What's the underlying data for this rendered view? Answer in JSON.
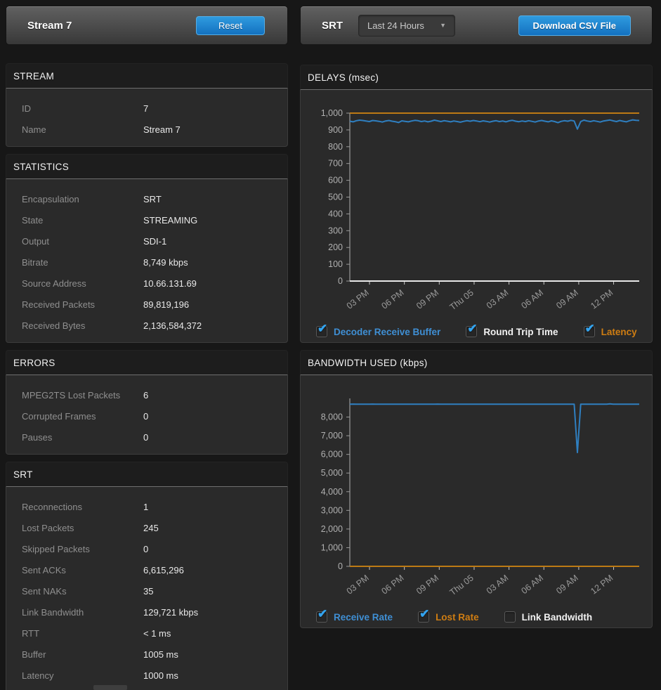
{
  "left": {
    "header": {
      "title": "Stream 7",
      "reset_label": "Reset"
    },
    "sections": [
      {
        "title": "STREAM",
        "rows": [
          [
            "ID",
            "7"
          ],
          [
            "Name",
            "Stream 7"
          ]
        ]
      },
      {
        "title": "STATISTICS",
        "rows": [
          [
            "Encapsulation",
            "SRT"
          ],
          [
            "State",
            "STREAMING"
          ],
          [
            "Output",
            "SDI-1"
          ],
          [
            "Bitrate",
            "8,749 kbps"
          ],
          [
            "Source Address",
            "10.66.131.69"
          ],
          [
            "Received Packets",
            "89,819,196"
          ],
          [
            "Received Bytes",
            "2,136,584,372"
          ]
        ]
      },
      {
        "title": "ERRORS",
        "rows": [
          [
            "MPEG2TS Lost Packets",
            "6"
          ],
          [
            "Corrupted Frames",
            "0"
          ],
          [
            "Pauses",
            "0"
          ]
        ]
      },
      {
        "title": "SRT",
        "rows": [
          [
            "Reconnections",
            "1"
          ],
          [
            "Lost Packets",
            "245"
          ],
          [
            "Skipped Packets",
            "0"
          ],
          [
            "Sent ACKs",
            "6,615,296"
          ],
          [
            "Sent NAKs",
            "35"
          ],
          [
            "Link Bandwidth",
            "129,721 kbps"
          ],
          [
            "RTT",
            "< 1 ms"
          ],
          [
            "Buffer",
            "1005 ms"
          ],
          [
            "Latency",
            "1000 ms"
          ]
        ]
      }
    ]
  },
  "right": {
    "header": {
      "title": "SRT",
      "range_selected": "Last 24 Hours",
      "download_label": "Download CSV File"
    }
  },
  "colors": {
    "accent_blue": "#1f7fd0",
    "series_blue": "#2f7fc0",
    "series_orange": "#bd7a14",
    "legend_blue": "#3f8fd4",
    "legend_orange": "#cf7d12",
    "check_blue": "#33a3ee"
  },
  "chart_data": [
    {
      "type": "line",
      "title": "DELAYS (msec)",
      "x_ticks": [
        "03 PM",
        "06 PM",
        "09 PM",
        "Thu 05",
        "03 AM",
        "06 AM",
        "09 AM",
        "12 PM"
      ],
      "ylim": [
        0,
        1000
      ],
      "y_tick_step": 100,
      "y_tick_max": 1000,
      "grid": false,
      "legend_position": "bottom",
      "series": [
        {
          "name": "Decoder Receive Buffer",
          "color": "#2f7fc0",
          "label_color": "#3f8fd4",
          "checked": true,
          "values": [
            952,
            948,
            955,
            958,
            956,
            953,
            950,
            956,
            954,
            951,
            947,
            953,
            956,
            952,
            949,
            944,
            954,
            951,
            948,
            953,
            957,
            955,
            950,
            953,
            948,
            952,
            958,
            954,
            950,
            955,
            952,
            948,
            953,
            950,
            946,
            951,
            955,
            952,
            956,
            953,
            949,
            954,
            951,
            947,
            952,
            955,
            950,
            953,
            948,
            954,
            957,
            952,
            949,
            953,
            950,
            955,
            951,
            947,
            953,
            956,
            952,
            948,
            954,
            950,
            943,
            951,
            955,
            952,
            957,
            953,
            905,
            950,
            958,
            953,
            950,
            955,
            951,
            947,
            953,
            956,
            959,
            954,
            950,
            956,
            952,
            948,
            955,
            960,
            957,
            956
          ]
        },
        {
          "name": "Round Trip Time",
          "color": "#e8e8e8",
          "label_color": "#f2f2f2",
          "checked": true,
          "values": [
            0,
            0
          ]
        },
        {
          "name": "Latency",
          "color": "#bd7a14",
          "label_color": "#cf7d12",
          "checked": true,
          "values": [
            1000,
            1000
          ]
        }
      ]
    },
    {
      "type": "line",
      "title": "BANDWIDTH USED (kbps)",
      "x_ticks": [
        "03 PM",
        "06 PM",
        "09 PM",
        "Thu 05",
        "03 AM",
        "06 AM",
        "09 AM",
        "12 PM"
      ],
      "ylim": [
        0,
        9000
      ],
      "y_tick_step": 1000,
      "y_tick_max": 8000,
      "grid": false,
      "legend_position": "bottom",
      "series": [
        {
          "name": "Receive Rate",
          "color": "#2f7fc0",
          "label_color": "#3f8fd4",
          "checked": true,
          "values": [
            8690,
            8695,
            8690,
            8688,
            8692,
            8690,
            8690,
            8694,
            8690,
            8687,
            8690,
            8692,
            8690,
            8690,
            8688,
            8690,
            8693,
            8690,
            8690,
            8691,
            8690,
            8689,
            8690,
            8692,
            8690,
            8690,
            8690,
            8694,
            8690,
            8688,
            8690,
            8690,
            8692,
            8690,
            8690,
            8689,
            8690,
            8693,
            8690,
            8690,
            8690,
            8691,
            8690,
            8688,
            8690,
            8690,
            8692,
            8690,
            8690,
            8690,
            8689,
            8690,
            8690,
            8693,
            8690,
            8690,
            8691,
            8690,
            8688,
            8690,
            8690,
            8692,
            8690,
            8690,
            8690,
            8690,
            8689,
            8690,
            8692,
            8690,
            6100,
            8690,
            8691,
            8690,
            8690,
            8688,
            8690,
            8692,
            8690,
            8690,
            8705,
            8690,
            8690,
            8691,
            8690,
            8690,
            8689,
            8690,
            8692,
            8690
          ]
        },
        {
          "name": "Lost Rate",
          "color": "#bd7a14",
          "label_color": "#cf7d12",
          "checked": true,
          "values": [
            0,
            0
          ]
        },
        {
          "name": "Link Bandwidth",
          "color": "#e8e8e8",
          "label_color": "#f2f2f2",
          "checked": false,
          "values": null
        }
      ]
    }
  ]
}
